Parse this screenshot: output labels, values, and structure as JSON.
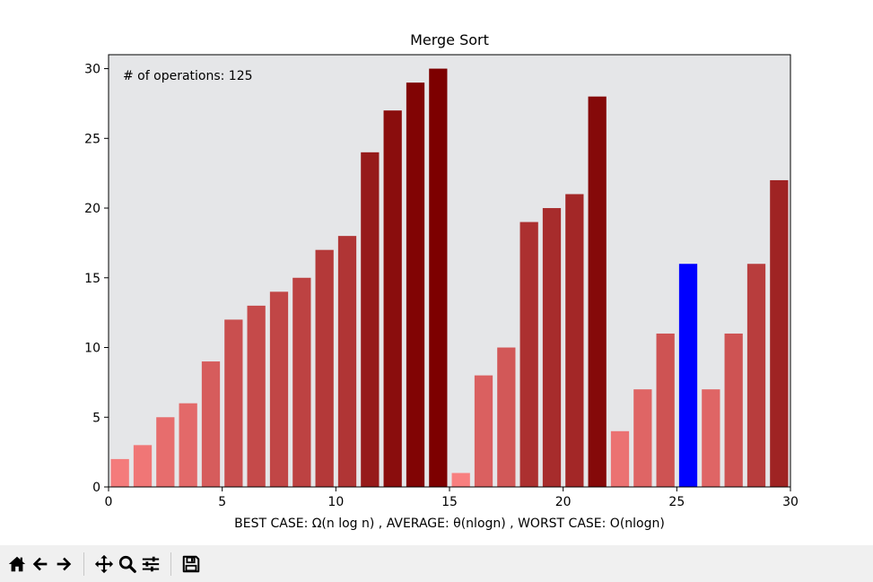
{
  "chart_data": {
    "type": "bar",
    "title": "Merge Sort",
    "xlabel": "BEST CASE: Ω(n log n) ,  AVERAGE: θ(nlogn) ,  WORST CASE: O(nlogn)",
    "ylabel": "",
    "annotation": "# of operations: 125",
    "xlim": [
      0,
      30
    ],
    "ylim": [
      0,
      31
    ],
    "xticks": [
      0,
      5,
      10,
      15,
      20,
      25,
      30
    ],
    "yticks": [
      0,
      5,
      10,
      15,
      20,
      25,
      30
    ],
    "x": [
      0.5,
      1.5,
      2.5,
      3.5,
      4.5,
      5.5,
      6.5,
      7.5,
      8.5,
      9.5,
      10.5,
      11.5,
      12.5,
      13.5,
      14.5,
      15.5,
      16.5,
      17.5,
      18.5,
      19.5,
      20.5,
      21.5,
      22.5,
      23.5,
      24.5,
      25.5,
      26.5,
      27.5,
      28.5,
      29.5
    ],
    "values": [
      2,
      3,
      5,
      6,
      9,
      12,
      13,
      14,
      15,
      17,
      18,
      24,
      27,
      29,
      30,
      1,
      8,
      10,
      19,
      20,
      21,
      28,
      4,
      7,
      11,
      16,
      7,
      11,
      16,
      22
    ],
    "highlight_index": 25,
    "highlight_color": "#0000ff",
    "color_low": "#f87f7f",
    "color_high": "#7d0000",
    "background": "#e5e6e8",
    "grid": false
  },
  "toolbar": {
    "buttons": [
      {
        "name": "home-icon"
      },
      {
        "name": "back-arrow-icon"
      },
      {
        "name": "forward-arrow-icon"
      },
      {
        "name": "pan-icon"
      },
      {
        "name": "zoom-icon"
      },
      {
        "name": "configure-subplots-icon"
      },
      {
        "name": "save-icon"
      }
    ]
  }
}
